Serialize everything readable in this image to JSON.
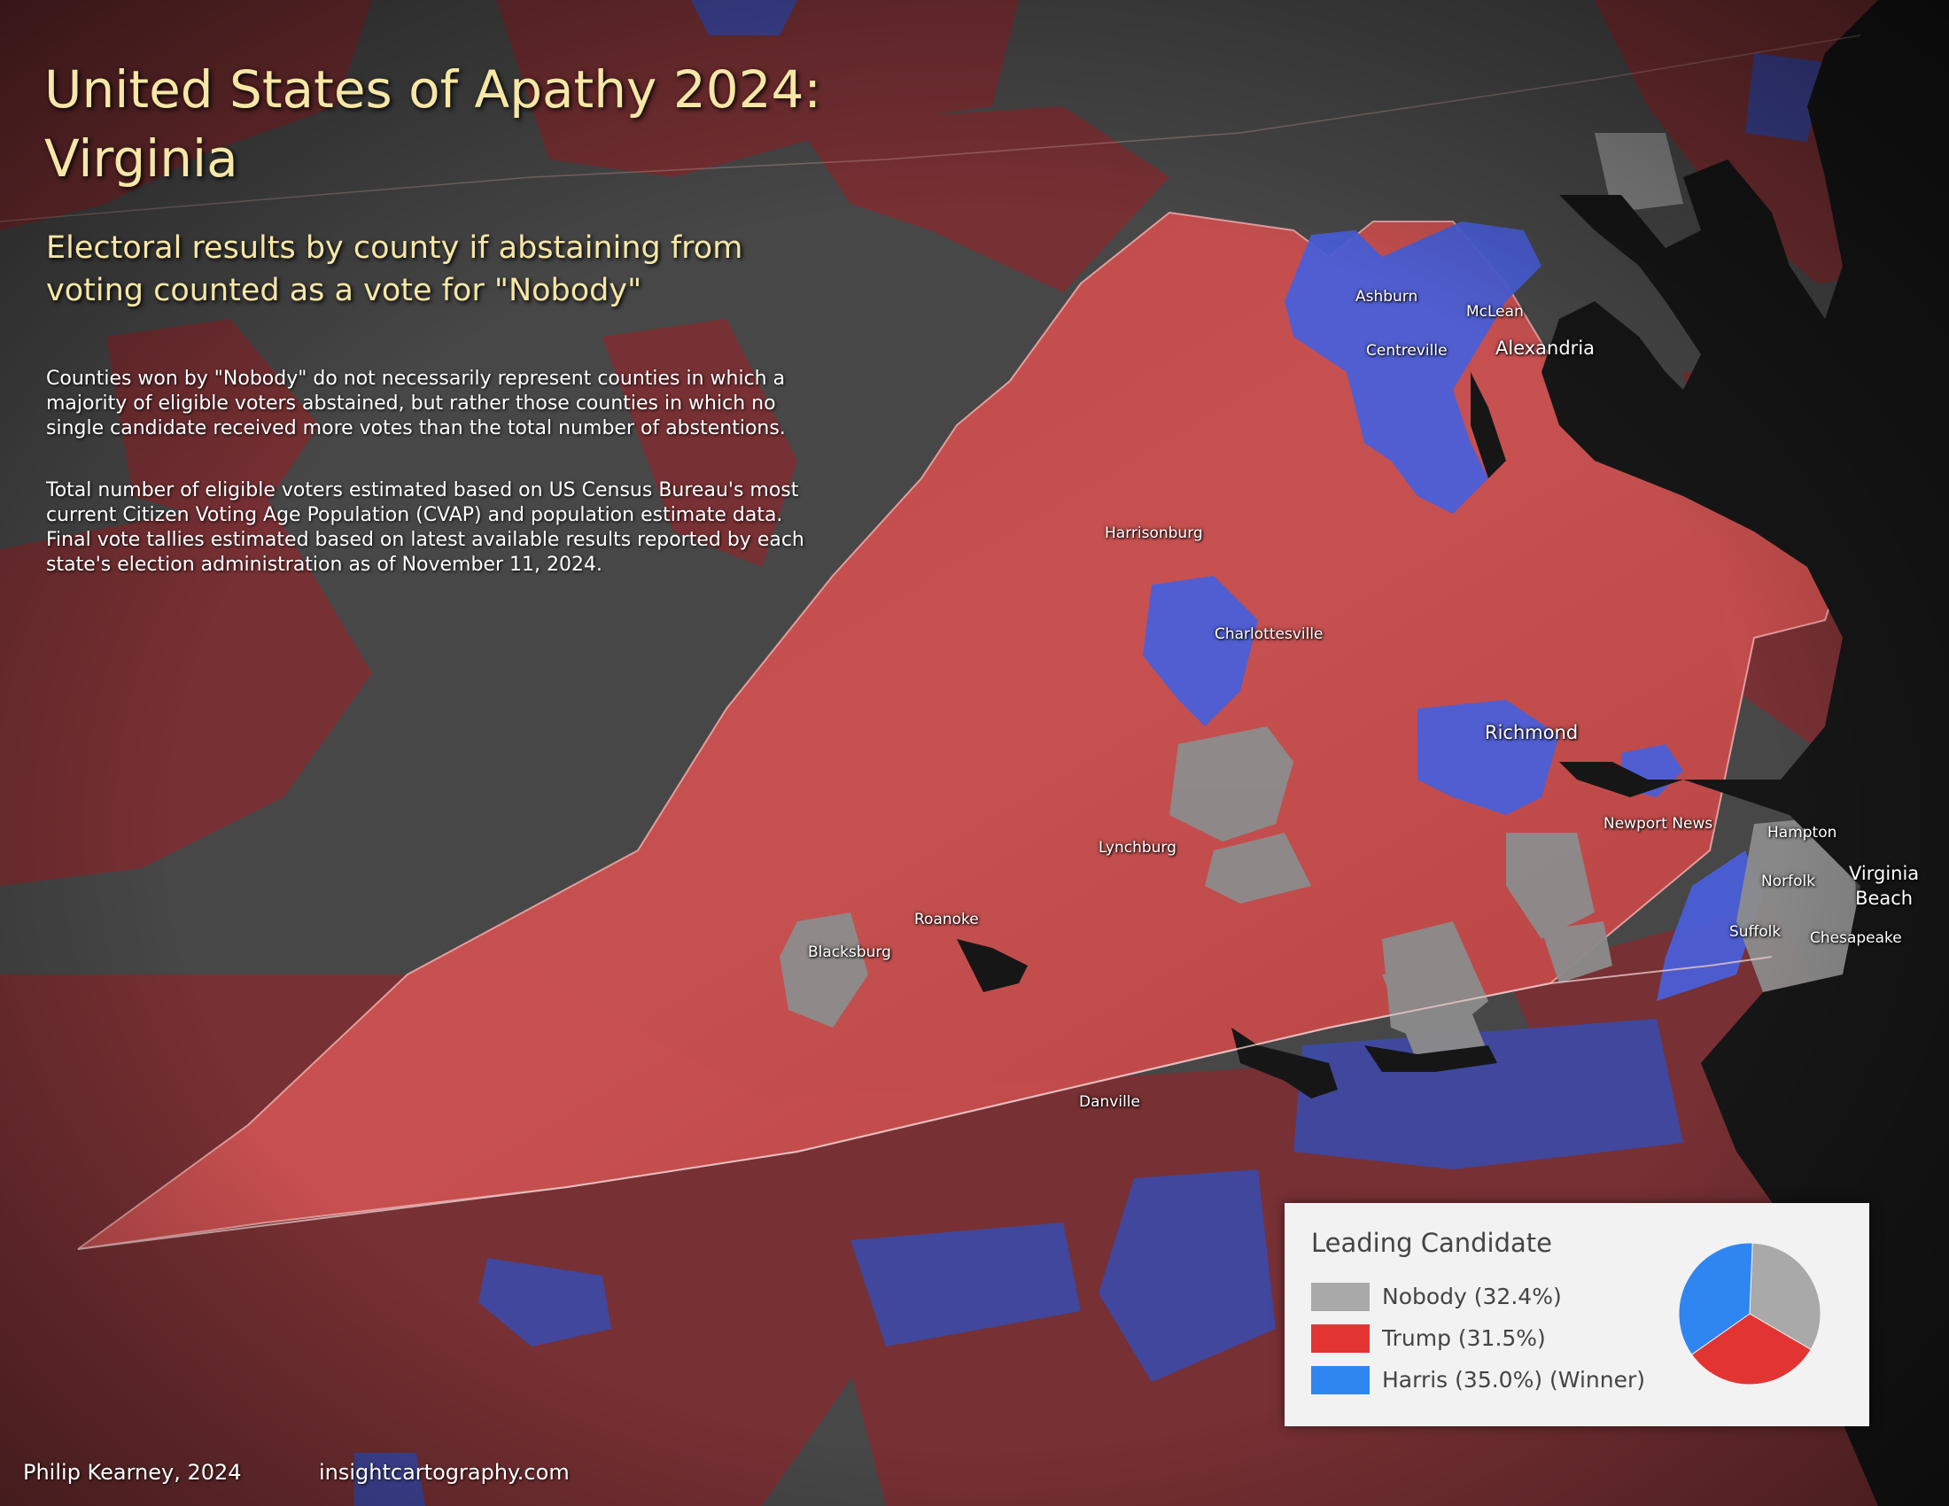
{
  "title_line1": "United States of Apathy 2024:",
  "title_line2": "Virginia",
  "subtitle": "Electoral results by county if abstaining from voting counted as a vote for \"Nobody\"",
  "note1": "Counties won by \"Nobody\" do not necessarily represent counties in which a majority of eligible voters abstained, but rather those counties in which no single candidate received more votes than the total number of abstentions.",
  "note2": "Total number of eligible voters estimated based on US Census Bureau's most current Citizen Voting Age Population (CVAP) and population estimate data. Final vote tallies estimated based on latest available results reported by each state's election administration as of November 11, 2024.",
  "cities": {
    "ashburn": "Ashburn",
    "mclean": "McLean",
    "centreville": "Centreville",
    "alexandria": "Alexandria",
    "harrisonburg": "Harrisonburg",
    "charlottesville": "Charlottesville",
    "richmond": "Richmond",
    "newport_news": "Newport News",
    "hampton": "Hampton",
    "norfolk": "Norfolk",
    "virginia_beach_1": "Virginia",
    "virginia_beach_2": "Beach",
    "lynchburg": "Lynchburg",
    "roanoke": "Roanoke",
    "blacksburg": "Blacksburg",
    "suffolk": "Suffolk",
    "chesapeake": "Chesapeake",
    "danville": "Danville"
  },
  "legend": {
    "title": "Leading Candidate",
    "items": [
      {
        "label": "Nobody (32.4%)",
        "color": "#a9a9a9",
        "value": 32.4
      },
      {
        "label": "Trump (31.5%)",
        "color": "#e33434",
        "value": 31.5
      },
      {
        "label": "Harris (35.0%) (Winner)",
        "color": "#2f86f0",
        "value": 35.0
      }
    ]
  },
  "colors": {
    "nobody": "#a9a9a9",
    "trump": "#e33434",
    "harris": "#2f86f0",
    "water": "#161616",
    "title": "#f6e7a6"
  },
  "credits": {
    "author": "Philip Kearney, 2024",
    "site": "insightcartography.com"
  }
}
